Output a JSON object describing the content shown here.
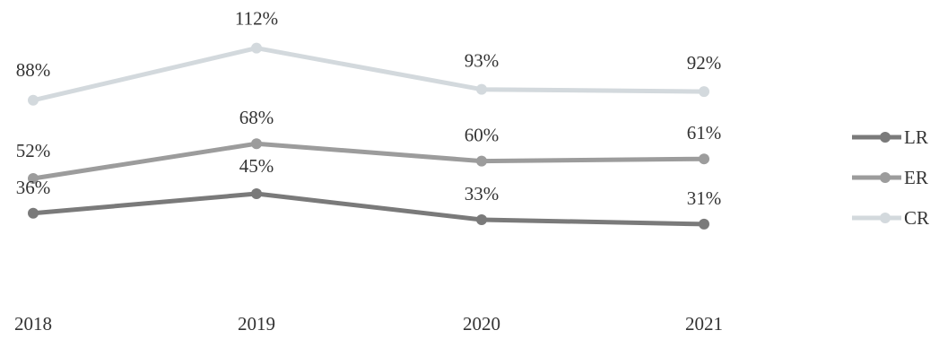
{
  "chart_data": {
    "type": "line",
    "title": "",
    "xlabel": "",
    "ylabel": "",
    "categories": [
      "2018",
      "2019",
      "2020",
      "2021"
    ],
    "ylim": [
      0,
      130
    ],
    "grid": false,
    "legend_position": "right",
    "series": [
      {
        "name": "LR",
        "values": [
          36,
          45,
          33,
          31
        ],
        "labels": [
          "36%",
          "45%",
          "33%",
          "31%"
        ],
        "color": "#7a7a7a"
      },
      {
        "name": "ER",
        "values": [
          52,
          68,
          60,
          61
        ],
        "labels": [
          "52%",
          "68%",
          "60%",
          "61%"
        ],
        "color": "#9c9c9c"
      },
      {
        "name": "CR",
        "values": [
          88,
          112,
          93,
          92
        ],
        "labels": [
          "88%",
          "112%",
          "93%",
          "92%"
        ],
        "color": "#d3d9dd"
      }
    ]
  }
}
